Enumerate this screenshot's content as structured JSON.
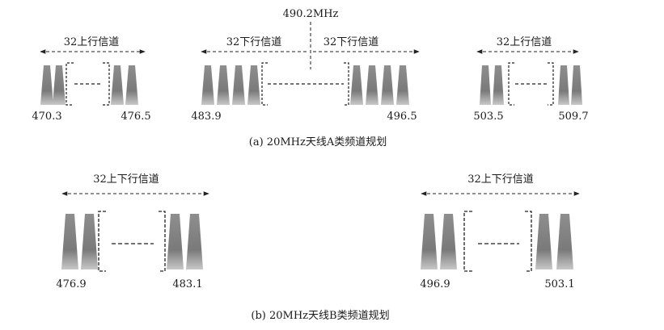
{
  "top_marker": "490.2MHz",
  "panel_a": {
    "caption": "(a) 20MHz天线A类频道规划",
    "groups": [
      {
        "title": "32上行信道",
        "start": "470.3",
        "end": "476.5"
      },
      {
        "title_left": "32下行信道",
        "title_right": "32下行信道",
        "start": "483.9",
        "end": "496.5"
      },
      {
        "title": "32上行信道",
        "start": "503.5",
        "end": "509.7"
      }
    ]
  },
  "panel_b": {
    "caption": "(b) 20MHz天线B类频道规划",
    "groups": [
      {
        "title": "32上下行信道",
        "start": "476.9",
        "end": "483.1"
      },
      {
        "title": "32上下行信道",
        "start": "496.9",
        "end": "503.1"
      }
    ]
  }
}
